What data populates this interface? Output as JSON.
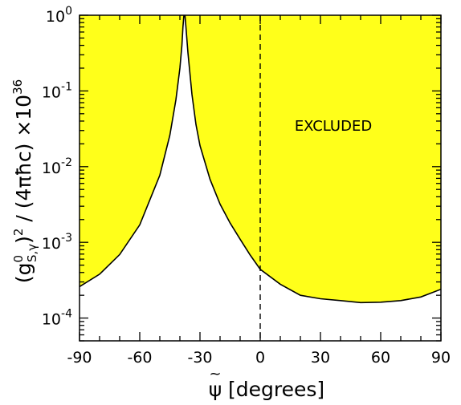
{
  "chart_data": {
    "type": "area",
    "xlabel_symbol": "ψ",
    "xlabel_accent": "~",
    "xlabel_unit": "[degrees]",
    "ylabel": {
      "open": "(g",
      "sup": "0",
      "sub": "S,γ",
      "close": ")",
      "power": "2",
      "middle": " / (4πħc) ×10",
      "exp": "36"
    },
    "xlim": [
      -90,
      90
    ],
    "ylim": [
      5e-05,
      1
    ],
    "y_scale": "log",
    "x_ticks": [
      -90,
      -60,
      -30,
      0,
      30,
      60,
      90
    ],
    "x_tick_labels": [
      "-90",
      "-60",
      "-30",
      "0",
      "30",
      "60",
      "90"
    ],
    "y_ticks": [
      {
        "value": 0.0001,
        "base": "10",
        "exp": "-4"
      },
      {
        "value": 0.001,
        "base": "10",
        "exp": "-3"
      },
      {
        "value": 0.01,
        "base": "10",
        "exp": "-2"
      },
      {
        "value": 0.1,
        "base": "10",
        "exp": "-1"
      },
      {
        "value": 1,
        "base": "10",
        "exp": "0"
      }
    ],
    "excluded_region": {
      "label": "EXCLUDED",
      "fill_color": "#ffff1a",
      "boundary": {
        "x": [
          -90,
          -80,
          -70,
          -60,
          -50,
          -45,
          -42,
          -40,
          -39,
          -38.5,
          -38,
          -37.5,
          -37,
          -36,
          -34,
          -32,
          -30,
          -25,
          -20,
          -15,
          -10,
          -5,
          0,
          10,
          20,
          30,
          40,
          50,
          60,
          70,
          80,
          90
        ],
        "y": [
          0.00026,
          0.00038,
          0.00069,
          0.0017,
          0.0077,
          0.026,
          0.076,
          0.2,
          0.4,
          0.7,
          1,
          1,
          0.7,
          0.32,
          0.09,
          0.036,
          0.019,
          0.0068,
          0.0032,
          0.0018,
          0.0011,
          0.00068,
          0.00044,
          0.00028,
          0.0002,
          0.00018,
          0.00017,
          0.00016,
          0.000162,
          0.00017,
          0.00019,
          0.00024
        ]
      }
    },
    "reference_line": {
      "x": 0,
      "style": "dashed"
    }
  }
}
